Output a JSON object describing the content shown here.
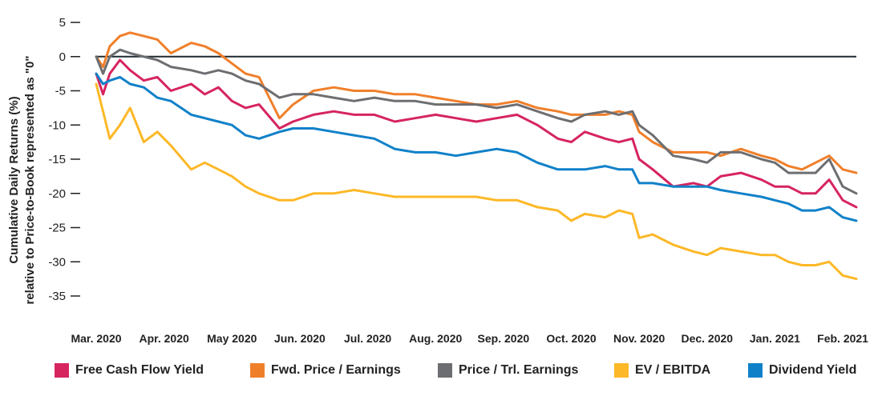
{
  "chart_data": {
    "type": "line",
    "title": "",
    "ylabel_line1": "Cumulative Daily Returns (%)",
    "ylabel_line2": "relative to Price-to-Book represented as \"0\"",
    "xlabel": "",
    "ylim": [
      -35,
      5
    ],
    "yticks": [
      5,
      0,
      -5,
      -10,
      -15,
      -20,
      -25,
      -30,
      -35
    ],
    "ytick_labels": [
      "5",
      "0",
      "-5",
      "-10",
      "-15",
      "-20",
      "-25",
      "-30",
      "-35"
    ],
    "x_tick_labels": [
      "Mar. 2020",
      "Apr. 2020",
      "May 2020",
      "Jun. 2020",
      "Jul. 2020",
      "Aug. 2020",
      "Sep. 2020",
      "Oct. 2020",
      "Nov. 2020",
      "Dec. 2020",
      "Jan. 2021",
      "Feb. 2021"
    ],
    "x_tick_positions": [
      0,
      1,
      2,
      3,
      4,
      5,
      6,
      7,
      8,
      9,
      10,
      11
    ],
    "zero_line": 0,
    "series": [
      {
        "name": "Free Cash Flow Yield",
        "color": "#d6245f",
        "x": [
          0,
          0.1,
          0.2,
          0.35,
          0.5,
          0.7,
          0.9,
          1.1,
          1.4,
          1.6,
          1.8,
          2.0,
          2.2,
          2.4,
          2.7,
          2.9,
          3.2,
          3.5,
          3.8,
          4.1,
          4.4,
          4.7,
          5.0,
          5.3,
          5.6,
          5.9,
          6.2,
          6.5,
          6.8,
          7.0,
          7.2,
          7.5,
          7.7,
          7.9,
          8.0,
          8.2,
          8.5,
          8.8,
          9.0,
          9.2,
          9.5,
          9.8,
          10.0,
          10.2,
          10.4,
          10.6,
          10.8,
          11.0,
          11.2
        ],
        "values": [
          -2.5,
          -5.5,
          -2.5,
          -0.5,
          -2.0,
          -3.5,
          -3.0,
          -5.0,
          -4.0,
          -5.5,
          -4.5,
          -6.5,
          -7.5,
          -7.0,
          -10.5,
          -9.5,
          -8.5,
          -8.0,
          -8.5,
          -8.5,
          -9.5,
          -9.0,
          -8.5,
          -9.0,
          -9.5,
          -9.0,
          -8.5,
          -10.0,
          -12.0,
          -12.5,
          -11.0,
          -12.0,
          -12.5,
          -12.0,
          -15.0,
          -16.5,
          -19.0,
          -18.5,
          -19.0,
          -17.5,
          -17.0,
          -18.0,
          -19.0,
          -19.0,
          -20.0,
          -20.0,
          -18.0,
          -21.0,
          -22.0
        ]
      },
      {
        "name": "Fwd. Price / Earnings",
        "color": "#f07f2a",
        "x": [
          0,
          0.1,
          0.2,
          0.35,
          0.5,
          0.7,
          0.9,
          1.1,
          1.4,
          1.6,
          1.8,
          2.0,
          2.2,
          2.4,
          2.7,
          2.9,
          3.2,
          3.5,
          3.8,
          4.1,
          4.4,
          4.7,
          5.0,
          5.3,
          5.6,
          5.9,
          6.2,
          6.5,
          6.8,
          7.0,
          7.2,
          7.5,
          7.7,
          7.9,
          8.0,
          8.2,
          8.5,
          8.8,
          9.0,
          9.2,
          9.5,
          9.8,
          10.0,
          10.2,
          10.4,
          10.6,
          10.8,
          11.0,
          11.2
        ],
        "values": [
          0,
          -1.5,
          1.5,
          3.0,
          3.5,
          3.0,
          2.5,
          0.5,
          2.0,
          1.5,
          0.5,
          -1.0,
          -2.5,
          -3.0,
          -9.0,
          -7.0,
          -5.0,
          -4.5,
          -5.0,
          -5.0,
          -5.5,
          -5.5,
          -6.0,
          -6.5,
          -7.0,
          -7.0,
          -6.5,
          -7.5,
          -8.0,
          -8.5,
          -8.5,
          -8.5,
          -8.0,
          -8.5,
          -11.0,
          -12.5,
          -14.0,
          -14.0,
          -14.0,
          -14.5,
          -13.5,
          -14.5,
          -15.0,
          -16.0,
          -16.5,
          -15.5,
          -14.5,
          -16.5,
          -17.0
        ]
      },
      {
        "name": "Price / Trl. Earnings",
        "color": "#6d6e71",
        "x": [
          0,
          0.1,
          0.2,
          0.35,
          0.5,
          0.7,
          0.9,
          1.1,
          1.4,
          1.6,
          1.8,
          2.0,
          2.2,
          2.4,
          2.7,
          2.9,
          3.2,
          3.5,
          3.8,
          4.1,
          4.4,
          4.7,
          5.0,
          5.3,
          5.6,
          5.9,
          6.2,
          6.5,
          6.8,
          7.0,
          7.2,
          7.5,
          7.7,
          7.9,
          8.0,
          8.2,
          8.5,
          8.8,
          9.0,
          9.2,
          9.5,
          9.8,
          10.0,
          10.2,
          10.4,
          10.6,
          10.8,
          11.0,
          11.2
        ],
        "values": [
          0,
          -2.5,
          0,
          1.0,
          0.5,
          0,
          -0.5,
          -1.5,
          -2.0,
          -2.5,
          -2.0,
          -2.5,
          -3.5,
          -4.0,
          -6.0,
          -5.5,
          -5.5,
          -6.0,
          -6.5,
          -6.0,
          -6.5,
          -6.5,
          -7.0,
          -7.0,
          -7.0,
          -7.5,
          -7.0,
          -8.0,
          -9.0,
          -9.5,
          -8.5,
          -8.0,
          -8.5,
          -8.0,
          -10.0,
          -11.5,
          -14.5,
          -15.0,
          -15.5,
          -14.0,
          -14.0,
          -15.0,
          -15.5,
          -17.0,
          -17.0,
          -17.0,
          -15.0,
          -19.0,
          -20.0
        ]
      },
      {
        "name": "EV / EBITDA",
        "color": "#fdb827",
        "x": [
          0,
          0.1,
          0.2,
          0.35,
          0.5,
          0.7,
          0.9,
          1.1,
          1.4,
          1.6,
          1.8,
          2.0,
          2.2,
          2.4,
          2.7,
          2.9,
          3.2,
          3.5,
          3.8,
          4.1,
          4.4,
          4.7,
          5.0,
          5.3,
          5.6,
          5.9,
          6.2,
          6.5,
          6.8,
          7.0,
          7.2,
          7.5,
          7.7,
          7.9,
          8.0,
          8.2,
          8.5,
          8.8,
          9.0,
          9.2,
          9.5,
          9.8,
          10.0,
          10.2,
          10.4,
          10.6,
          10.8,
          11.0,
          11.2
        ],
        "values": [
          -4.0,
          -8.0,
          -12.0,
          -10.0,
          -7.5,
          -12.5,
          -11.0,
          -13.0,
          -16.5,
          -15.5,
          -16.5,
          -17.5,
          -19.0,
          -20.0,
          -21.0,
          -21.0,
          -20.0,
          -20.0,
          -19.5,
          -20.0,
          -20.5,
          -20.5,
          -20.5,
          -20.5,
          -20.5,
          -21.0,
          -21.0,
          -22.0,
          -22.5,
          -24.0,
          -23.0,
          -23.5,
          -22.5,
          -23.0,
          -26.5,
          -26.0,
          -27.5,
          -28.5,
          -29.0,
          -28.0,
          -28.5,
          -29.0,
          -29.0,
          -30.0,
          -30.5,
          -30.5,
          -30.0,
          -32.0,
          -32.5
        ]
      },
      {
        "name": "Dividend Yield",
        "color": "#1081c9",
        "x": [
          0,
          0.1,
          0.2,
          0.35,
          0.5,
          0.7,
          0.9,
          1.1,
          1.4,
          1.6,
          1.8,
          2.0,
          2.2,
          2.4,
          2.7,
          2.9,
          3.2,
          3.5,
          3.8,
          4.1,
          4.4,
          4.7,
          5.0,
          5.3,
          5.6,
          5.9,
          6.2,
          6.5,
          6.8,
          7.0,
          7.2,
          7.5,
          7.7,
          7.9,
          8.0,
          8.2,
          8.5,
          8.8,
          9.0,
          9.2,
          9.5,
          9.8,
          10.0,
          10.2,
          10.4,
          10.6,
          10.8,
          11.0,
          11.2
        ],
        "values": [
          -2.5,
          -4.0,
          -3.5,
          -3.0,
          -4.0,
          -4.5,
          -6.0,
          -6.5,
          -8.5,
          -9.0,
          -9.5,
          -10.0,
          -11.5,
          -12.0,
          -11.0,
          -10.5,
          -10.5,
          -11.0,
          -11.5,
          -12.0,
          -13.5,
          -14.0,
          -14.0,
          -14.5,
          -14.0,
          -13.5,
          -14.0,
          -15.5,
          -16.5,
          -16.5,
          -16.5,
          -16.0,
          -16.5,
          -16.5,
          -18.5,
          -18.5,
          -19.0,
          -19.0,
          -19.0,
          -19.5,
          -20.0,
          -20.5,
          -21.0,
          -21.5,
          -22.5,
          -22.5,
          -22.0,
          -23.5,
          -24.0
        ]
      }
    ]
  }
}
